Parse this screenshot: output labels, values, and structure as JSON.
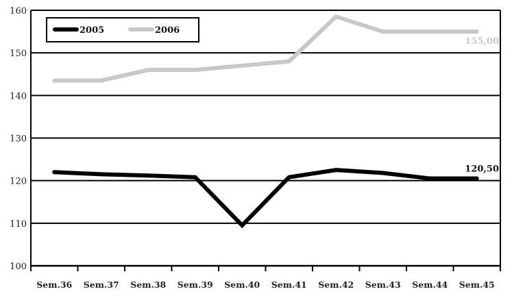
{
  "chart_data": {
    "type": "line",
    "categories": [
      "Sem.36",
      "Sem.37",
      "Sem.38",
      "Sem.39",
      "Sem.40",
      "Sem.41",
      "Sem.42",
      "Sem.43",
      "Sem.44",
      "Sem.45"
    ],
    "ylim": [
      100,
      160
    ],
    "yticks": [
      "100",
      "110",
      "120",
      "130",
      "140",
      "150",
      "160"
    ],
    "grid": true,
    "legend_position": "top-left",
    "series": [
      {
        "name": "2005",
        "color": "#000000",
        "values": [
          122,
          121.5,
          121.2,
          120.8,
          109.5,
          120.8,
          122.5,
          121.8,
          120.5,
          120.5
        ],
        "end_label": "120,50"
      },
      {
        "name": "2006",
        "color": "#c8c8c8",
        "values": [
          143.5,
          143.5,
          146,
          146,
          147,
          148,
          158.5,
          155,
          155,
          155
        ],
        "end_label": "155,00"
      }
    ]
  }
}
